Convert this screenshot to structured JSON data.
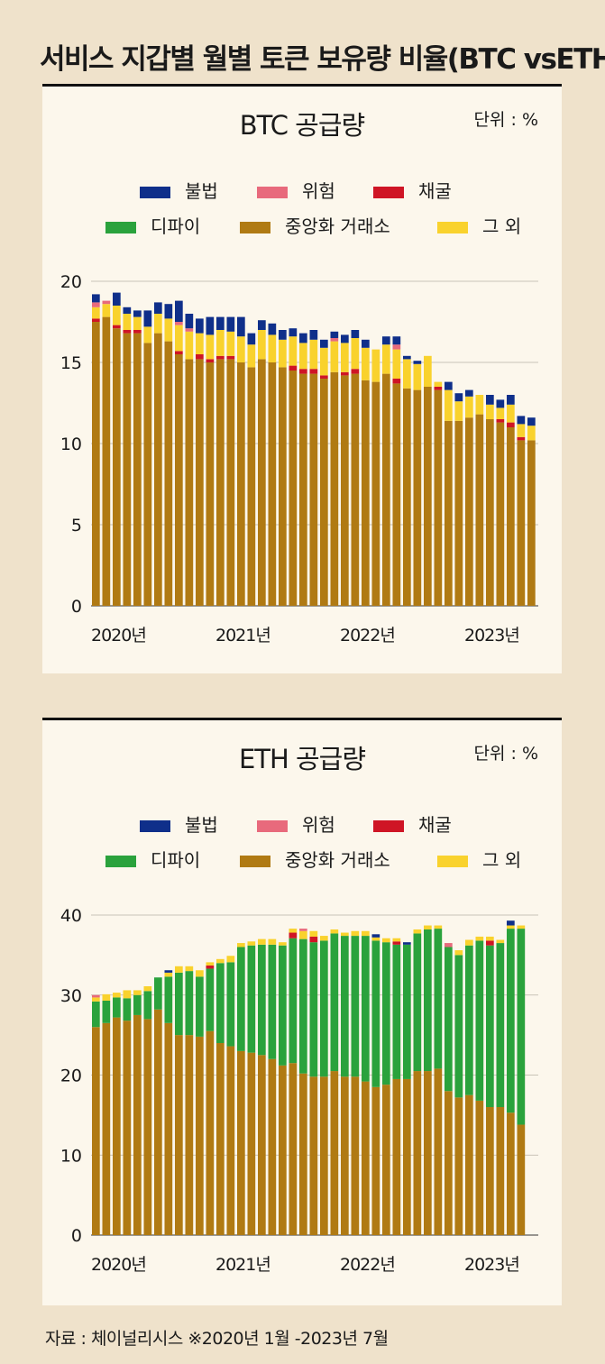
{
  "title": "서비스 지갑별 월별 토큰 보유량 비율(BTC vsETH)",
  "source": "자료 :  체이널리시스 ※2020년 1월 -2023년 7월",
  "legend": [
    {
      "name": "불법",
      "color": "#0f2f8a"
    },
    {
      "name": "위험",
      "color": "#e86a7c"
    },
    {
      "name": "채굴",
      "color": "#cf1525"
    },
    {
      "name": "디파이",
      "color": "#2aa23c"
    },
    {
      "name": "중앙화 거래소",
      "color": "#b07a13"
    },
    {
      "name": "그 외",
      "color": "#f9d22d"
    }
  ],
  "chart_data": [
    {
      "type": "bar",
      "stacked": true,
      "title": "BTC 공급량",
      "unit_label": "단위 : %",
      "ylim": [
        0,
        20
      ],
      "yticks": [
        0,
        5,
        10,
        15,
        20
      ],
      "xtick_labels": [
        "2020년",
        "2021년",
        "2022년",
        "2023년"
      ],
      "xtick_months": [
        0,
        12,
        24,
        36
      ],
      "grid": true,
      "months": 43,
      "series": [
        {
          "name": "중앙화 거래소",
          "values": [
            17.5,
            17.8,
            17.1,
            16.8,
            16.8,
            16.2,
            16.8,
            16.3,
            15.5,
            15.2,
            15.2,
            15.0,
            15.2,
            15.2,
            15.0,
            14.7,
            15.2,
            15.0,
            14.7,
            14.5,
            14.3,
            14.3,
            14.0,
            14.4,
            14.2,
            14.3,
            13.9,
            13.8,
            14.3,
            13.7,
            13.4,
            13.3,
            13.5,
            13.3,
            11.4,
            11.4,
            11.6,
            11.8,
            11.5,
            11.3,
            11.0,
            10.2,
            10.2
          ]
        },
        {
          "name": "디파이",
          "values": [
            0,
            0,
            0,
            0,
            0,
            0,
            0,
            0,
            0,
            0,
            0,
            0,
            0,
            0,
            0,
            0,
            0,
            0,
            0,
            0,
            0,
            0,
            0,
            0,
            0,
            0,
            0,
            0,
            0,
            0,
            0,
            0,
            0,
            0,
            0,
            0,
            0,
            0,
            0,
            0,
            0,
            0,
            0
          ]
        },
        {
          "name": "채굴",
          "values": [
            0.2,
            0.0,
            0.2,
            0.2,
            0.2,
            0.0,
            0.0,
            0.0,
            0.2,
            0.0,
            0.3,
            0.2,
            0.2,
            0.2,
            0.0,
            0.0,
            0.0,
            0.0,
            0.0,
            0.3,
            0.3,
            0.3,
            0.2,
            0.0,
            0.2,
            0.3,
            0.0,
            0.0,
            0.0,
            0.3,
            0.0,
            0.0,
            0.0,
            0.2,
            0.0,
            0.0,
            0.0,
            0.0,
            0.0,
            0.2,
            0.3,
            0.2,
            0.0
          ]
        },
        {
          "name": "그 외",
          "values": [
            0.7,
            0.8,
            1.2,
            1.0,
            0.8,
            1.0,
            1.2,
            1.4,
            1.6,
            1.7,
            1.3,
            1.5,
            1.6,
            1.5,
            1.6,
            1.4,
            1.8,
            1.7,
            1.7,
            1.8,
            1.6,
            1.8,
            1.7,
            1.9,
            1.8,
            1.9,
            2.0,
            2.0,
            1.8,
            1.8,
            1.8,
            1.6,
            1.9,
            0.3,
            1.9,
            1.2,
            1.3,
            1.2,
            0.9,
            0.7,
            1.1,
            0.8,
            0.9
          ]
        },
        {
          "name": "위험",
          "values": [
            0.3,
            0.2,
            0.0,
            0.0,
            0.0,
            0.0,
            0.0,
            0.0,
            0.2,
            0.2,
            0.0,
            0.0,
            0.0,
            0.0,
            0.0,
            0.0,
            0.0,
            0.0,
            0.0,
            0.0,
            0.0,
            0.0,
            0.0,
            0.2,
            0.0,
            0.0,
            0.0,
            0.0,
            0.0,
            0.3,
            0.0,
            0.0,
            0.0,
            0.0,
            0.0,
            0.0,
            0.0,
            0.0,
            0.0,
            0.0,
            0.0,
            0.0,
            0.0
          ]
        },
        {
          "name": "불법",
          "values": [
            0.5,
            0.0,
            0.8,
            0.4,
            0.4,
            1.0,
            0.7,
            0.9,
            1.3,
            0.9,
            0.9,
            1.1,
            0.8,
            0.9,
            1.2,
            0.7,
            0.6,
            0.7,
            0.6,
            0.5,
            0.6,
            0.6,
            0.5,
            0.4,
            0.5,
            0.5,
            0.5,
            0.0,
            0.5,
            0.5,
            0.2,
            0.2,
            0.0,
            0.0,
            0.5,
            0.5,
            0.4,
            0.0,
            0.6,
            0.5,
            0.6,
            0.5,
            0.5
          ]
        }
      ]
    },
    {
      "type": "bar",
      "stacked": true,
      "title": "ETH 공급량",
      "unit_label": "단위 : %",
      "ylim": [
        0,
        40
      ],
      "yticks": [
        0,
        10,
        20,
        30,
        40
      ],
      "xtick_labels": [
        "2020년",
        "2021년",
        "2022년",
        "2023년"
      ],
      "xtick_months": [
        0,
        12,
        24,
        36
      ],
      "grid": true,
      "months": 43,
      "series": [
        {
          "name": "중앙화 거래소",
          "values": [
            26.0,
            26.5,
            27.2,
            26.8,
            27.5,
            27.0,
            28.2,
            26.5,
            25.0,
            25.0,
            24.8,
            25.5,
            24.0,
            23.6,
            23.0,
            22.8,
            22.5,
            22.0,
            21.2,
            21.5,
            20.2,
            19.8,
            19.8,
            20.5,
            19.8,
            19.8,
            19.2,
            18.5,
            18.8,
            19.5,
            19.5,
            20.5,
            20.5,
            20.8,
            18.0,
            17.2,
            17.5,
            16.8,
            16.0,
            16.0,
            15.3,
            13.8,
            0
          ]
        },
        {
          "name": "디파이",
          "values": [
            3.2,
            2.8,
            2.5,
            2.8,
            2.5,
            3.5,
            4.0,
            5.8,
            7.8,
            8.0,
            7.5,
            7.8,
            10.0,
            10.5,
            13.0,
            13.4,
            13.8,
            14.3,
            15.0,
            15.6,
            16.8,
            16.8,
            17.0,
            17.2,
            17.6,
            17.6,
            18.2,
            18.3,
            17.8,
            16.8,
            16.8,
            17.2,
            17.7,
            17.5,
            18.0,
            17.8,
            18.7,
            20.0,
            20.2,
            20.5,
            23.0,
            24.5,
            0
          ]
        },
        {
          "name": "채굴",
          "values": [
            0,
            0,
            0,
            0,
            0,
            0,
            0,
            0,
            0,
            0,
            0,
            0.4,
            0,
            0,
            0,
            0,
            0,
            0,
            0,
            0.7,
            0,
            0.7,
            0,
            0,
            0,
            0,
            0,
            0,
            0,
            0.4,
            0,
            0,
            0,
            0,
            0,
            0,
            0,
            0,
            0.6,
            0,
            0,
            0,
            0
          ]
        },
        {
          "name": "그 외",
          "values": [
            0.5,
            0.8,
            0.6,
            1.0,
            0.6,
            0.6,
            0.0,
            0.5,
            0.8,
            0.6,
            0.8,
            0.4,
            0.5,
            0.8,
            0.5,
            0.5,
            0.7,
            0.7,
            0.4,
            0.5,
            1.0,
            0.7,
            0.6,
            0.5,
            0.4,
            0.6,
            0.6,
            0.4,
            0.5,
            0.4,
            0.0,
            0.5,
            0.5,
            0.4,
            0.0,
            0.6,
            0.7,
            0.5,
            0.5,
            0.4,
            0.4,
            0.4,
            0
          ]
        },
        {
          "name": "위험",
          "values": [
            0.3,
            0,
            0,
            0,
            0,
            0,
            0,
            0,
            0,
            0,
            0,
            0,
            0,
            0,
            0,
            0,
            0,
            0,
            0,
            0,
            0.3,
            0,
            0,
            0,
            0,
            0,
            0,
            0,
            0,
            0,
            0,
            0,
            0,
            0,
            0.5,
            0,
            0,
            0,
            0,
            0,
            0,
            0,
            0
          ]
        },
        {
          "name": "불법",
          "values": [
            0,
            0,
            0,
            0,
            0,
            0,
            0,
            0.3,
            0,
            0,
            0,
            0,
            0,
            0,
            0,
            0,
            0,
            0,
            0,
            0,
            0,
            0,
            0,
            0,
            0,
            0,
            0,
            0.4,
            0,
            0,
            0.3,
            0,
            0,
            0,
            0,
            0,
            0,
            0,
            0,
            0,
            0.6,
            0,
            0
          ]
        }
      ]
    }
  ]
}
